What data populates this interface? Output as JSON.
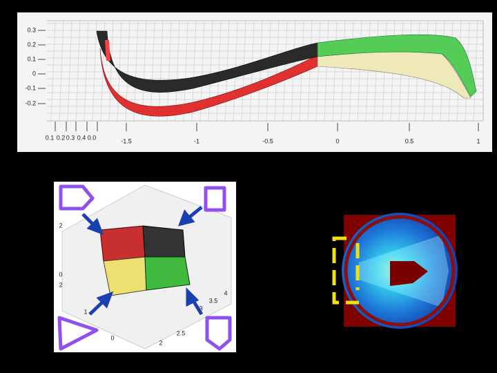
{
  "top_plot": {
    "y_ticks": [
      "0.3",
      "0.2",
      "0.1",
      "0",
      "-0.1",
      "-0.2"
    ],
    "x_ticks": [
      "-1.5",
      "-1",
      "-0.5",
      "0",
      "0.5",
      "1"
    ],
    "depth_ticks": [
      "0.1",
      "0.2",
      "0.3",
      "0.4",
      "0.0"
    ]
  },
  "bottom_left_plot": {
    "tick_labels": [
      "2",
      "0",
      "2",
      "1",
      "0",
      "2",
      "2.5",
      "3",
      "3.5",
      "4"
    ]
  }
}
